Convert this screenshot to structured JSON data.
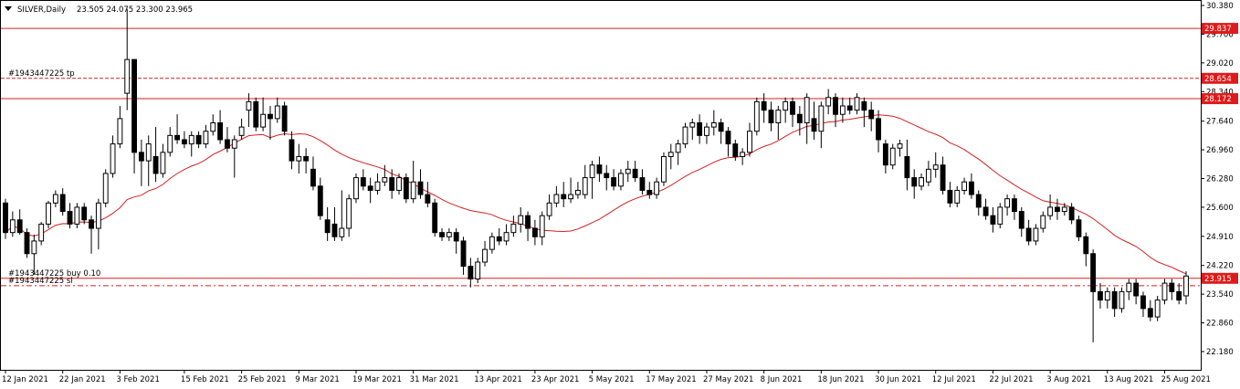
{
  "header": {
    "symbol": "SILVER,Daily",
    "ohlc": "23.505 24.075 23.300 23.965"
  },
  "colors": {
    "bull": "#ffffff",
    "bear": "#000000",
    "wick": "#000000",
    "ma": "#d62020",
    "level": "#d62020",
    "tag": "#e01a1a"
  },
  "chart_data": {
    "type": "candlestick",
    "ylim": [
      22.18,
      30.38
    ],
    "y_ticks": [
      "30.380",
      "29.700",
      "29.020",
      "28.340",
      "27.640",
      "26.960",
      "26.280",
      "25.600",
      "24.910",
      "24.220",
      "23.540",
      "22.860",
      "22.180"
    ],
    "x_ticks": [
      {
        "label": "12 Jan 2021",
        "index": 0
      },
      {
        "label": "22 Jan 2021",
        "index": 8
      },
      {
        "label": "3 Feb 2021",
        "index": 16
      },
      {
        "label": "15 Feb 2021",
        "index": 25
      },
      {
        "label": "25 Feb 2021",
        "index": 33
      },
      {
        "label": "9 Mar 2021",
        "index": 41
      },
      {
        "label": "19 Mar 2021",
        "index": 49
      },
      {
        "label": "31 Mar 2021",
        "index": 57
      },
      {
        "label": "13 Apr 2021",
        "index": 66
      },
      {
        "label": "23 Apr 2021",
        "index": 74
      },
      {
        "label": "5 May 2021",
        "index": 82
      },
      {
        "label": "17 May 2021",
        "index": 90
      },
      {
        "label": "27 May 2021",
        "index": 98
      },
      {
        "label": "8 Jun 2021",
        "index": 106
      },
      {
        "label": "18 Jun 2021",
        "index": 114
      },
      {
        "label": "30 Jun 2021",
        "index": 122
      },
      {
        "label": "12 Jul 2021",
        "index": 130
      },
      {
        "label": "22 Jul 2021",
        "index": 138
      },
      {
        "label": "3 Aug 2021",
        "index": 146
      },
      {
        "label": "13 Aug 2021",
        "index": 154
      },
      {
        "label": "25 Aug 2021",
        "index": 162
      }
    ],
    "candles": [
      [
        25.7,
        25.0,
        25.8,
        24.85
      ],
      [
        25.0,
        25.3,
        25.5,
        24.9
      ],
      [
        25.3,
        25.0,
        25.55,
        24.95
      ],
      [
        25.0,
        24.5,
        25.1,
        24.4
      ],
      [
        24.5,
        24.8,
        24.95,
        24.0
      ],
      [
        24.8,
        25.2,
        25.25,
        24.7
      ],
      [
        25.2,
        25.7,
        25.75,
        25.1
      ],
      [
        25.7,
        25.9,
        26.0,
        25.6
      ],
      [
        25.9,
        25.5,
        26.05,
        25.4
      ],
      [
        25.5,
        25.2,
        25.7,
        25.1
      ],
      [
        25.2,
        25.6,
        25.7,
        25.1
      ],
      [
        25.6,
        25.3,
        25.7,
        25.2
      ],
      [
        25.3,
        25.1,
        25.4,
        24.5
      ],
      [
        25.1,
        25.7,
        25.8,
        24.6
      ],
      [
        25.7,
        26.4,
        26.5,
        25.6
      ],
      [
        26.4,
        27.1,
        27.3,
        26.3
      ],
      [
        27.1,
        27.7,
        28.0,
        27.0
      ],
      [
        28.3,
        29.1,
        30.3,
        27.9
      ],
      [
        29.1,
        26.9,
        29.1,
        26.4
      ],
      [
        26.9,
        26.7,
        27.2,
        26.1
      ],
      [
        26.7,
        27.1,
        27.3,
        26.1
      ],
      [
        26.8,
        26.4,
        27.5,
        26.2
      ],
      [
        26.4,
        26.9,
        27.1,
        26.3
      ],
      [
        26.9,
        27.3,
        27.5,
        26.8
      ],
      [
        27.3,
        27.2,
        27.8,
        27.1
      ],
      [
        27.2,
        27.1,
        27.4,
        27.0
      ],
      [
        27.1,
        27.3,
        27.4,
        26.8
      ],
      [
        27.3,
        27.1,
        27.4,
        27.0
      ],
      [
        27.1,
        27.4,
        27.55,
        27.0
      ],
      [
        27.4,
        27.6,
        27.8,
        27.3
      ],
      [
        27.6,
        27.2,
        27.9,
        27.1
      ],
      [
        27.2,
        27.0,
        27.5,
        26.9
      ],
      [
        27.0,
        27.2,
        27.3,
        26.3
      ],
      [
        27.3,
        27.5,
        27.7,
        27.2
      ],
      [
        27.9,
        28.1,
        28.3,
        27.5
      ],
      [
        28.1,
        27.5,
        28.2,
        27.4
      ],
      [
        27.5,
        27.8,
        28.2,
        27.4
      ],
      [
        27.8,
        27.7,
        28.0,
        27.2
      ],
      [
        27.7,
        28.0,
        28.2,
        27.6
      ],
      [
        28.0,
        27.4,
        28.1,
        27.3
      ],
      [
        27.2,
        26.7,
        27.4,
        26.5
      ],
      [
        26.7,
        26.8,
        27.1,
        26.4
      ],
      [
        26.8,
        26.7,
        27.0,
        26.4
      ],
      [
        26.5,
        26.1,
        26.8,
        26.0
      ],
      [
        26.1,
        25.4,
        26.3,
        25.3
      ],
      [
        25.3,
        25.0,
        25.6,
        24.8
      ],
      [
        25.2,
        24.9,
        25.6,
        24.8
      ],
      [
        24.9,
        25.1,
        26.0,
        24.8
      ],
      [
        25.1,
        25.8,
        25.9,
        24.9
      ],
      [
        25.8,
        26.3,
        26.4,
        25.7
      ],
      [
        26.3,
        26.1,
        26.5,
        26.0
      ],
      [
        26.1,
        26.0,
        26.3,
        25.7
      ],
      [
        26.0,
        26.2,
        26.4,
        25.9
      ],
      [
        26.2,
        26.3,
        26.6,
        26.1
      ],
      [
        26.3,
        26.0,
        26.5,
        25.8
      ],
      [
        26.0,
        26.3,
        26.4,
        25.9
      ],
      [
        26.3,
        25.8,
        26.4,
        25.7
      ],
      [
        25.8,
        26.2,
        26.7,
        25.7
      ],
      [
        26.2,
        25.9,
        26.5,
        25.8
      ],
      [
        25.9,
        25.7,
        26.2,
        25.6
      ],
      [
        25.7,
        25.0,
        25.8,
        24.9
      ],
      [
        25.0,
        24.9,
        25.1,
        24.8
      ],
      [
        24.9,
        25.0,
        25.1,
        24.8
      ],
      [
        25.0,
        24.8,
        25.1,
        24.5
      ],
      [
        24.8,
        24.2,
        24.9,
        24.0
      ],
      [
        24.2,
        23.9,
        24.4,
        23.7
      ],
      [
        23.9,
        24.3,
        24.4,
        23.8
      ],
      [
        24.3,
        24.6,
        24.8,
        24.2
      ],
      [
        24.6,
        24.9,
        25.0,
        24.5
      ],
      [
        24.9,
        24.8,
        25.1,
        24.7
      ],
      [
        24.8,
        25.0,
        25.2,
        24.7
      ],
      [
        25.0,
        25.2,
        25.4,
        24.9
      ],
      [
        25.2,
        25.4,
        25.6,
        25.0
      ],
      [
        25.4,
        25.1,
        25.5,
        24.8
      ],
      [
        25.1,
        24.9,
        25.3,
        24.7
      ],
      [
        24.9,
        25.4,
        25.5,
        24.7
      ],
      [
        25.4,
        25.7,
        25.9,
        25.3
      ],
      [
        25.7,
        25.9,
        26.1,
        25.6
      ],
      [
        25.9,
        25.8,
        26.2,
        25.6
      ],
      [
        25.8,
        25.9,
        26.3,
        25.7
      ],
      [
        25.9,
        26.0,
        26.2,
        25.8
      ],
      [
        25.9,
        26.3,
        26.6,
        25.8
      ],
      [
        26.3,
        26.6,
        26.7,
        25.8
      ],
      [
        26.6,
        26.4,
        26.8,
        26.2
      ],
      [
        26.4,
        26.3,
        26.6,
        26.0
      ],
      [
        26.3,
        26.1,
        26.5,
        26.0
      ],
      [
        26.1,
        26.4,
        26.5,
        26.0
      ],
      [
        26.4,
        26.5,
        26.7,
        26.2
      ],
      [
        26.5,
        26.3,
        26.7,
        26.2
      ],
      [
        26.3,
        26.0,
        26.5,
        25.9
      ],
      [
        26.0,
        25.9,
        26.2,
        25.8
      ],
      [
        25.9,
        26.2,
        26.3,
        25.8
      ],
      [
        26.2,
        26.8,
        26.9,
        26.1
      ],
      [
        26.8,
        26.9,
        27.1,
        26.5
      ],
      [
        26.9,
        27.1,
        27.2,
        26.6
      ],
      [
        27.1,
        27.5,
        27.6,
        27.0
      ],
      [
        27.5,
        27.6,
        27.7,
        27.2
      ],
      [
        27.6,
        27.3,
        27.8,
        27.1
      ],
      [
        27.3,
        27.5,
        27.6,
        27.1
      ],
      [
        27.5,
        27.6,
        27.9,
        27.3
      ],
      [
        27.6,
        27.4,
        27.7,
        27.1
      ],
      [
        27.4,
        27.1,
        27.5,
        26.8
      ],
      [
        27.1,
        26.8,
        27.2,
        26.7
      ],
      [
        26.8,
        26.9,
        27.0,
        26.6
      ],
      [
        26.9,
        27.4,
        27.6,
        26.8
      ],
      [
        27.4,
        28.1,
        28.2,
        27.3
      ],
      [
        28.1,
        27.9,
        28.3,
        27.6
      ],
      [
        27.9,
        27.6,
        28.1,
        27.4
      ],
      [
        27.6,
        27.9,
        28.0,
        27.2
      ],
      [
        27.9,
        28.1,
        28.2,
        27.6
      ],
      [
        28.1,
        27.8,
        28.2,
        27.5
      ],
      [
        27.8,
        27.6,
        28.0,
        27.3
      ],
      [
        27.6,
        28.2,
        28.3,
        27.1
      ],
      [
        27.7,
        27.4,
        28.1,
        27.2
      ],
      [
        27.4,
        28.0,
        28.1,
        27.0
      ],
      [
        28.0,
        28.2,
        28.4,
        27.8
      ],
      [
        28.2,
        27.8,
        28.3,
        27.5
      ],
      [
        27.8,
        28.0,
        28.2,
        27.6
      ],
      [
        28.0,
        27.9,
        28.2,
        27.8
      ],
      [
        27.9,
        28.2,
        28.3,
        27.8
      ],
      [
        28.1,
        27.9,
        28.2,
        27.5
      ],
      [
        27.9,
        27.7,
        28.1,
        27.4
      ],
      [
        27.7,
        27.2,
        27.9,
        26.9
      ],
      [
        27.1,
        26.6,
        27.2,
        26.4
      ],
      [
        26.6,
        27.0,
        27.1,
        26.5
      ],
      [
        27.0,
        27.1,
        27.2,
        26.8
      ],
      [
        26.8,
        26.3,
        27.2,
        26.0
      ],
      [
        26.3,
        26.1,
        26.5,
        25.8
      ],
      [
        26.1,
        26.3,
        26.4,
        26.0
      ],
      [
        26.2,
        26.5,
        26.7,
        26.1
      ],
      [
        26.5,
        26.6,
        26.9,
        26.3
      ]
    ],
    "ma_period": 20,
    "levels": [
      {
        "price": 29.837,
        "label": "29.837",
        "style": "solid"
      },
      {
        "price": 28.654,
        "label": "28.654",
        "style": "dashed",
        "note": "#1943447225 tp"
      },
      {
        "price": 28.172,
        "label": "28.172",
        "style": "solid"
      },
      {
        "price": 23.915,
        "label": "23.915",
        "style": "solid",
        "note": "#1943447225 buy 0.10"
      },
      {
        "price": 23.74,
        "label": "",
        "style": "dashdot",
        "note": "#1943447225 sl"
      }
    ]
  }
}
